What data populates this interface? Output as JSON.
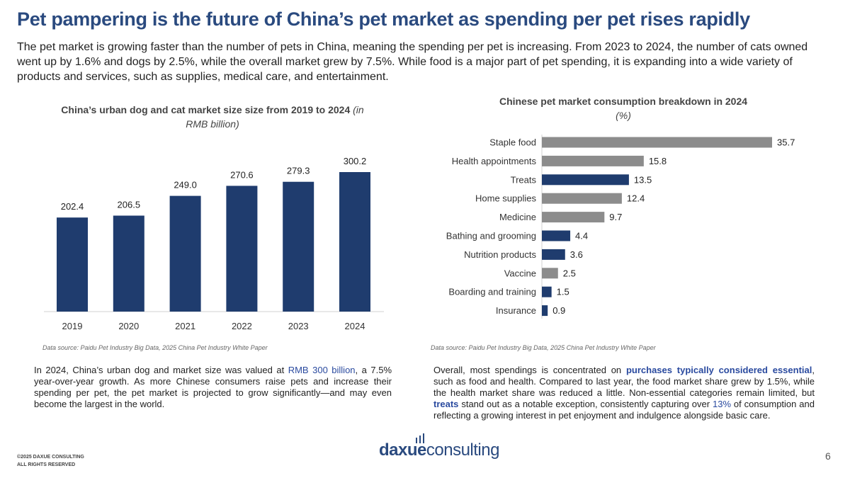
{
  "title": "Pet pampering is the future of China’s pet market as spending per pet rises rapidly",
  "intro": "The pet market is growing faster than the number of pets in China, meaning the spending per pet is increasing. From 2023 to 2024, the number of cats owned went up by 1.6% and dogs by 2.5%, while the overall market grew by 7.5%. While food is a major part of pet spending, it is expanding into a wide variety of products and services, such as supplies, medical care, and entertainment.",
  "colors": {
    "accent": "#1f3c6e",
    "grey": "#8c8c8c",
    "title": "#2a4a7f",
    "highlight": "#2a4a9f"
  },
  "chart_data": [
    {
      "type": "bar",
      "title": "China’s urban dog and cat market size size from 2019 to 2024",
      "title_unit": "(in RMB billion)",
      "categories": [
        "2019",
        "2020",
        "2021",
        "2022",
        "2023",
        "2024"
      ],
      "values": [
        202.4,
        206.5,
        249.0,
        270.6,
        279.3,
        300.2
      ],
      "labels": [
        "202.4",
        "206.5",
        "249.0",
        "270.6",
        "279.3",
        "300.2"
      ],
      "ylim": [
        0,
        300.2
      ],
      "grid": false,
      "color": "#1f3c6e"
    },
    {
      "type": "bar",
      "orientation": "horizontal",
      "title": "Chinese pet market consumption breakdown in 2024",
      "title_unit": "(%)",
      "categories": [
        "Staple food",
        "Health appointments",
        "Treats",
        "Home supplies",
        "Medicine",
        "Bathing and grooming",
        "Nutrition products",
        "Vaccine",
        "Boarding and training",
        "Insurance"
      ],
      "values": [
        35.7,
        15.8,
        13.5,
        12.4,
        9.7,
        4.4,
        3.6,
        2.5,
        1.5,
        0.9
      ],
      "labels": [
        "35.7",
        "15.8",
        "13.5",
        "12.4",
        "9.7",
        "4.4",
        "3.6",
        "2.5",
        "1.5",
        "0.9"
      ],
      "colors": [
        "#8c8c8c",
        "#8c8c8c",
        "#1f3c6e",
        "#8c8c8c",
        "#8c8c8c",
        "#1f3c6e",
        "#1f3c6e",
        "#8c8c8c",
        "#1f3c6e",
        "#1f3c6e"
      ],
      "xlim": [
        0,
        35.7
      ],
      "grid": false
    }
  ],
  "left": {
    "source": "Data source: Paidu Pet Industry Big Data, 2025 China Pet Industry White Paper",
    "p1": "In 2024, China’s urban dog and market size was valued at ",
    "hl1": "RMB 300 billion",
    "p2": ", a 7.5% year-over-year growth. As more Chinese consumers raise pets and increase their spending per pet, the pet market is projected to grow significantly—and may even become the largest in the world."
  },
  "right": {
    "source": "Data source: Paidu Pet Industry Big Data, 2025 China Pet Industry White Paper",
    "p1": "Overall, most spendings is concentrated on ",
    "hl1": "purchases typically considered essential",
    "p2": ", such as food and health. Compared to last year, the food market share grew by 1.5%, while the health market share was reduced a little. Non-essential categories remain limited, but ",
    "hl2": "treats",
    "p3": " stand out as a notable exception, consistently capturing over ",
    "hl3": "13%",
    "p4": " of consumption and reflecting a growing interest in pet enjoyment and indulgence alongside basic care."
  },
  "footer": {
    "copyright1": "©2025 DAXUE CONSULTING",
    "copyright2": "ALL RIGHTS RESERVED",
    "logo_a": "daxue",
    "logo_b": "consulting",
    "page": "6"
  }
}
